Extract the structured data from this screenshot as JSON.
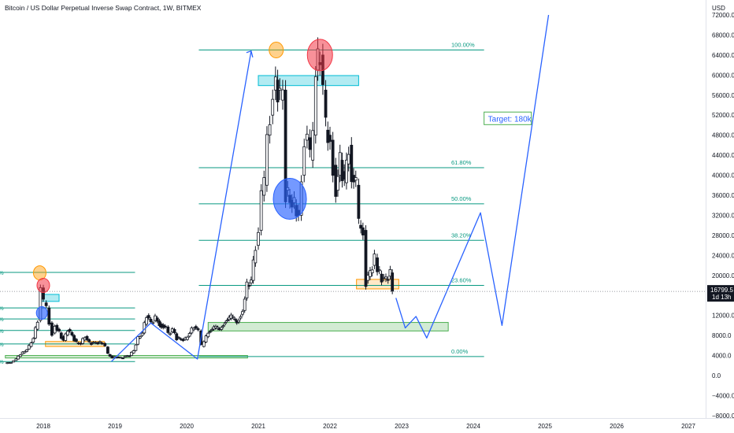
{
  "header": {
    "title": "Bitcoin / US Dollar Perpetual Inverse Swap Contract, 1W, BITMEX",
    "currency": "USD"
  },
  "colors": {
    "candle": "#131722",
    "fib": "#089981",
    "arrow": "#2962ff",
    "green_zone": "#4caf50",
    "orange_zone": "#ff9800",
    "cyan_zone": "#00bcd4",
    "red_circle": "#f23645",
    "blue_circle": "#2962ff",
    "price_tag": "#131722"
  },
  "chart_data": {
    "type": "candlestick",
    "title": "Bitcoin / US Dollar Perpetual Inverse Swap Contract, 1W, BITMEX",
    "interval": "1W",
    "y_axis": {
      "unit": "USD",
      "ticks": [
        72000,
        68000,
        64000,
        60000,
        56000,
        52000,
        48000,
        44000,
        40000,
        36000,
        32000,
        28000,
        24000,
        20000,
        16000,
        12000,
        8000,
        4000,
        0,
        -4000,
        -8000
      ],
      "tick_labels": [
        "72000.0",
        "68000.0",
        "64000.0",
        "60000.0",
        "56000.0",
        "52000.0",
        "48000.0",
        "44000.0",
        "40000.0",
        "36000.0",
        "32000.0",
        "28000.0",
        "24000.0",
        "20000.0",
        "16000.0",
        "12000.0",
        "8000.0",
        "4000.0",
        "0.0",
        "−4000.0",
        "−8000.0"
      ],
      "range": [
        -8000,
        72000
      ],
      "position": "right"
    },
    "x_axis": {
      "ticks": [
        2018,
        2019,
        2020,
        2021,
        2022,
        2023,
        2024,
        2025,
        2026,
        2027
      ],
      "tick_labels": [
        "2018",
        "2019",
        "2020",
        "2021",
        "2022",
        "2023",
        "2024",
        "2025",
        "2026",
        "2027"
      ],
      "range": [
        2017.45,
        2027.2
      ]
    },
    "current_price": {
      "value": 16799.5,
      "label": "16799.5",
      "countdown": "1d 13h"
    },
    "price_series": [
      [
        2017.47,
        2400
      ],
      [
        2017.55,
        2700
      ],
      [
        2017.62,
        3300
      ],
      [
        2017.68,
        4300
      ],
      [
        2017.74,
        4800
      ],
      [
        2017.8,
        5800
      ],
      [
        2017.86,
        7500
      ],
      [
        2017.92,
        11000
      ],
      [
        2017.96,
        17500
      ],
      [
        2018.0,
        14500
      ],
      [
        2018.04,
        13500
      ],
      [
        2018.08,
        10500
      ],
      [
        2018.12,
        8500
      ],
      [
        2018.16,
        10000
      ],
      [
        2018.22,
        8500
      ],
      [
        2018.28,
        7000
      ],
      [
        2018.34,
        9200
      ],
      [
        2018.4,
        8000
      ],
      [
        2018.46,
        6500
      ],
      [
        2018.52,
        6400
      ],
      [
        2018.58,
        7800
      ],
      [
        2018.64,
        6500
      ],
      [
        2018.7,
        6500
      ],
      [
        2018.76,
        6600
      ],
      [
        2018.82,
        6400
      ],
      [
        2018.86,
        5700
      ],
      [
        2018.9,
        4200
      ],
      [
        2018.96,
        3600
      ],
      [
        2019.02,
        3700
      ],
      [
        2019.08,
        3500
      ],
      [
        2019.14,
        3800
      ],
      [
        2019.2,
        4000
      ],
      [
        2019.26,
        5000
      ],
      [
        2019.32,
        7500
      ],
      [
        2019.38,
        8500
      ],
      [
        2019.44,
        12000
      ],
      [
        2019.5,
        10500
      ],
      [
        2019.56,
        11500
      ],
      [
        2019.62,
        10300
      ],
      [
        2019.7,
        9700
      ],
      [
        2019.74,
        8200
      ],
      [
        2019.8,
        9200
      ],
      [
        2019.86,
        7500
      ],
      [
        2019.92,
        7200
      ],
      [
        2019.98,
        7200
      ],
      [
        2020.04,
        8500
      ],
      [
        2020.1,
        9800
      ],
      [
        2020.16,
        8900
      ],
      [
        2020.2,
        5800
      ],
      [
        2020.24,
        6700
      ],
      [
        2020.3,
        8800
      ],
      [
        2020.38,
        9500
      ],
      [
        2020.46,
        9200
      ],
      [
        2020.54,
        11000
      ],
      [
        2020.62,
        11600
      ],
      [
        2020.7,
        10700
      ],
      [
        2020.78,
        13000
      ],
      [
        2020.84,
        18000
      ],
      [
        2020.9,
        19000
      ],
      [
        2020.96,
        26000
      ],
      [
        2021.0,
        29000
      ],
      [
        2021.04,
        36000
      ],
      [
        2021.08,
        38000
      ],
      [
        2021.12,
        48000
      ],
      [
        2021.16,
        52000
      ],
      [
        2021.2,
        57000
      ],
      [
        2021.24,
        59000
      ],
      [
        2021.3,
        55000
      ],
      [
        2021.34,
        57000
      ],
      [
        2021.38,
        37000
      ],
      [
        2021.44,
        35000
      ],
      [
        2021.5,
        34000
      ],
      [
        2021.56,
        32000
      ],
      [
        2021.6,
        40000
      ],
      [
        2021.64,
        47000
      ],
      [
        2021.68,
        47500
      ],
      [
        2021.72,
        43000
      ],
      [
        2021.76,
        48000
      ],
      [
        2021.8,
        61000
      ],
      [
        2021.86,
        64000
      ],
      [
        2021.9,
        57000
      ],
      [
        2021.94,
        49000
      ],
      [
        2022.0,
        47000
      ],
      [
        2022.04,
        42000
      ],
      [
        2022.08,
        37000
      ],
      [
        2022.14,
        43000
      ],
      [
        2022.2,
        38500
      ],
      [
        2022.26,
        46000
      ],
      [
        2022.3,
        40000
      ],
      [
        2022.36,
        38000
      ],
      [
        2022.4,
        30000
      ],
      [
        2022.46,
        29000
      ],
      [
        2022.5,
        19000
      ],
      [
        2022.56,
        20500
      ],
      [
        2022.62,
        23500
      ],
      [
        2022.66,
        21000
      ],
      [
        2022.72,
        19500
      ],
      [
        2022.78,
        19200
      ],
      [
        2022.84,
        20500
      ],
      [
        2022.87,
        16800
      ]
    ],
    "fib_levels": [
      {
        "level": "100.00%",
        "price": 65000
      },
      {
        "level": "61.80%",
        "price": 41500
      },
      {
        "level": "50.00%",
        "price": 34300
      },
      {
        "level": "38.20%",
        "price": 27000
      },
      {
        "level": "23.60%",
        "price": 18000
      },
      {
        "level": "0.00%",
        "price": 3800
      }
    ],
    "fib_levels_2018": [
      {
        "level": "%",
        "price": 20600
      },
      {
        "level": "%",
        "price": 13500
      },
      {
        "level": "%",
        "price": 11300
      },
      {
        "level": "%",
        "price": 9000
      },
      {
        "level": "%",
        "price": 6300
      },
      {
        "level": "%",
        "price": 2800
      }
    ],
    "projection_path": [
      [
        2022.92,
        15500
      ],
      [
        2023.05,
        9500
      ],
      [
        2023.2,
        11800
      ],
      [
        2023.35,
        7500
      ],
      [
        2024.1,
        32500
      ],
      [
        2024.4,
        10000
      ],
      [
        2025.05,
        72000
      ]
    ],
    "impulse_arrow_path": [
      [
        2018.95,
        2800
      ],
      [
        2019.5,
        10500
      ],
      [
        2020.15,
        3300
      ],
      [
        2020.9,
        64800
      ]
    ],
    "annotation": {
      "label": "Target: 180k"
    },
    "zones": {
      "green": [
        {
          "x0": 2017.47,
          "x1": 2020.85,
          "y0": 3500,
          "y1": 4000
        },
        {
          "x0": 2020.3,
          "x1": 2023.65,
          "y0": 8900,
          "y1": 10600
        }
      ],
      "orange": [
        {
          "x0": 2018.03,
          "x1": 2018.85,
          "y0": 5800,
          "y1": 6800
        },
        {
          "x0": 2022.37,
          "x1": 2022.96,
          "y0": 17300,
          "y1": 19200
        }
      ],
      "cyan": [
        {
          "x0": 2017.97,
          "x1": 2018.22,
          "y0": 14800,
          "y1": 16200
        },
        {
          "x0": 2021.0,
          "x1": 2022.4,
          "y0": 57900,
          "y1": 59900
        }
      ]
    },
    "circles": {
      "orange": [
        [
          2017.95,
          20500
        ],
        [
          2021.25,
          65000
        ]
      ],
      "red": [
        [
          2018.0,
          18000
        ],
        [
          2021.86,
          64000
        ]
      ],
      "blue": [
        [
          2017.98,
          12500
        ],
        [
          2021.44,
          35300
        ]
      ]
    }
  }
}
